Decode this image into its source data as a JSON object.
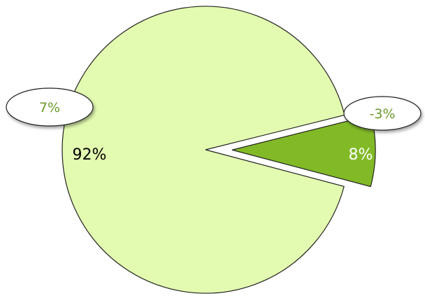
{
  "chart_data": {
    "type": "pie",
    "slices": [
      {
        "value": 92,
        "label": "92%",
        "color": "#e3fbb0",
        "exploded": false
      },
      {
        "value": 8,
        "label": "8%",
        "color": "#82ba27",
        "exploded": true
      }
    ],
    "callouts": [
      {
        "text": "7%",
        "color": "#6b9a2a"
      },
      {
        "text": "-3%",
        "color": "#6b9a2a"
      }
    ],
    "colors": {
      "outline": "#222222",
      "label_large": "#000000",
      "label_small": "#ffffff",
      "callout_fill": "#ffffff"
    }
  }
}
